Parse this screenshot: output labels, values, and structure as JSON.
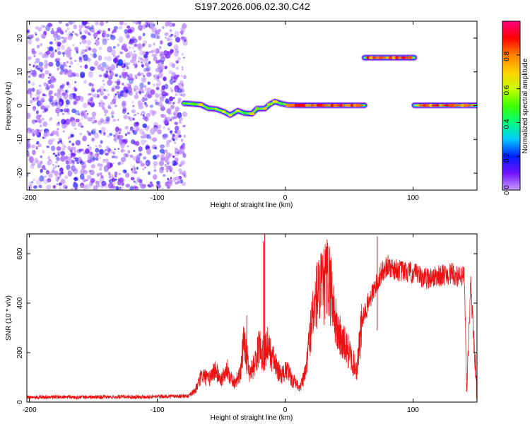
{
  "title": "S197.2026.006.02.30.C42",
  "chart_data": [
    {
      "type": "heatmap",
      "xlabel": "Height of straight line (km)",
      "ylabel": "Frequency (Hz)",
      "xlim": [
        -202,
        150
      ],
      "ylim": [
        -25,
        25
      ],
      "xticks": [
        -200,
        -100,
        0,
        100
      ],
      "yticks": [
        -20,
        -10,
        0,
        10,
        20
      ],
      "xtick_labels": [
        "-200",
        "-100",
        "0",
        "100"
      ],
      "ytick_labels": [
        "-20",
        "-10",
        "0",
        "10",
        "20"
      ],
      "colorbar": {
        "label": "Normalized spectral amplitude",
        "range": [
          0,
          1
        ],
        "ticks": [
          0.0,
          0.2,
          0.4,
          0.6,
          0.8
        ],
        "tick_labels": [
          "0.0",
          "0.2",
          "0.4",
          "0.6",
          "0.8"
        ],
        "colors": [
          "#c8a0ff",
          "#7010ff",
          "#0020ff",
          "#00c8ff",
          "#00ff80",
          "#40ff00",
          "#c8ff00",
          "#ffd000",
          "#ff8000",
          "#ff0000",
          "#ff0080"
        ]
      },
      "noise_region": {
        "x": [
          -202,
          -78
        ],
        "y": [
          -25,
          25
        ]
      },
      "frequency_track": [
        {
          "x": -79,
          "y": 0.7
        },
        {
          "x": -72,
          "y": 0.5
        },
        {
          "x": -66,
          "y": 0.3
        },
        {
          "x": -60,
          "y": -0.8
        },
        {
          "x": -54,
          "y": -1.0
        },
        {
          "x": -48,
          "y": -1.8
        },
        {
          "x": -43,
          "y": -2.8
        },
        {
          "x": -37,
          "y": -1.5
        },
        {
          "x": -32,
          "y": -2.2
        },
        {
          "x": -26,
          "y": -2.4
        },
        {
          "x": -22,
          "y": -0.9
        },
        {
          "x": -16,
          "y": -0.9
        },
        {
          "x": -12,
          "y": 0.4
        },
        {
          "x": -8,
          "y": 1.2
        },
        {
          "x": -3,
          "y": 0.6
        },
        {
          "x": 2,
          "y": 0.2
        },
        {
          "x": 10,
          "y": 0.1
        },
        {
          "x": 25,
          "y": 0.1
        },
        {
          "x": 40,
          "y": 0.1
        },
        {
          "x": 55,
          "y": 0.1
        },
        {
          "x": 62,
          "y": 0.1
        }
      ],
      "segments": [
        {
          "x_start": 62,
          "x_end": 101,
          "y": 14.2
        },
        {
          "x_start": 101,
          "x_end": 150,
          "y": 0.1
        }
      ]
    },
    {
      "type": "line",
      "xlabel": "Height of straight line (km)",
      "ylabel": "SNR (10 * v/v)",
      "xlim": [
        -202,
        150
      ],
      "ylim": [
        0,
        680
      ],
      "xticks": [
        -200,
        -100,
        0,
        100
      ],
      "yticks": [
        0,
        200,
        400,
        600
      ],
      "xtick_labels": [
        "-200",
        "-100",
        "0",
        "100"
      ],
      "ytick_labels": [
        "0",
        "200",
        "400",
        "600"
      ],
      "line_color": "#ee1111",
      "series": [
        {
          "x": [
            -202,
            -150,
            -100,
            -75,
            -70,
            -65,
            -60,
            -55,
            -50,
            -45,
            -40,
            -35,
            -32,
            -28,
            -24,
            -20,
            -18,
            -14,
            -10,
            -6,
            -2,
            2,
            5,
            8,
            12,
            16,
            20,
            25,
            30,
            33,
            36,
            40,
            45,
            50,
            53,
            56,
            60,
            65,
            70,
            75,
            80,
            90,
            100,
            110,
            120,
            130,
            138,
            140,
            142,
            145,
            150
          ],
          "y": [
            20,
            20,
            22,
            25,
            50,
            110,
            90,
            130,
            90,
            130,
            80,
            110,
            260,
            120,
            150,
            230,
            200,
            230,
            180,
            130,
            110,
            130,
            90,
            80,
            60,
            120,
            300,
            440,
            460,
            510,
            460,
            300,
            240,
            200,
            160,
            130,
            320,
            400,
            460,
            520,
            550,
            530,
            520,
            500,
            510,
            520,
            500,
            520,
            40,
            480,
            30
          ]
        }
      ],
      "spikes": [
        {
          "x": -30,
          "y": 350
        },
        {
          "x": -17,
          "y": 650
        },
        {
          "x": -16,
          "y": 680
        },
        {
          "x": 72,
          "y": 670
        }
      ]
    }
  ]
}
